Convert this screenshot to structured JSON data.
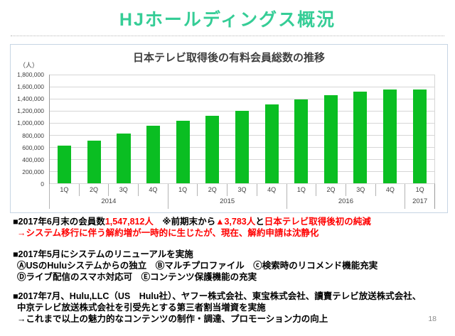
{
  "slide": {
    "title": "HJホールディングス概況",
    "page_number": "18"
  },
  "colors": {
    "title_green": "#35cd96",
    "bar_green": "#0abe22",
    "alert_red": "#ff0000",
    "chart_text_gray": "#3f3f3f",
    "page_number_gray": "#8c8c8c",
    "chart_border": "#c6d5e4"
  },
  "chart_data": {
    "type": "bar",
    "title": "日本テレビ取得後の有料会員総数の推移",
    "unit_label": "（人）",
    "categories": [
      "1Q",
      "2Q",
      "3Q",
      "4Q",
      "1Q",
      "2Q",
      "3Q",
      "4Q",
      "1Q",
      "2Q",
      "3Q",
      "4Q",
      "1Q"
    ],
    "year_groups": [
      {
        "label": "2014",
        "span": 4
      },
      {
        "label": "2015",
        "span": 4
      },
      {
        "label": "2016",
        "span": 4
      },
      {
        "label": "2017",
        "span": 1
      }
    ],
    "values": [
      620000,
      710000,
      820000,
      950000,
      1040000,
      1120000,
      1200000,
      1310000,
      1390000,
      1455000,
      1515000,
      1551595,
      1547812
    ],
    "ylim": [
      0,
      1800000
    ],
    "ytick_step": 200000,
    "grid": true,
    "legend": false,
    "bar_color": "#0abe22"
  },
  "bullets": {
    "s1": {
      "seg1": "■2017年6月末の会員数",
      "seg2": "1,547,812人",
      "seg3": "　※前期末から",
      "seg4": "▲3,783人",
      "seg5": "と",
      "seg6": "日本テレビ取得後初の純減",
      "line2": "→システム移行に伴う解約増が一時的に生じたが、現在、解約申請は沈静化"
    },
    "s2": {
      "header": "■2017年5月にシステムのリニューアルを実施",
      "items1": "ⒶUSのHuluシステムからの独立　Ⓑマルチプロファイル　ⓒ検索時のリコメンド機能充実",
      "items2": "Ⓓライブ配信のスマホ対応可　Ⓔコンテンツ保護機能の充実"
    },
    "s3": {
      "line1": "■2017年7月、Hulu,LLC（US　Hulu社）、ヤフー株式会社、東宝株式会社、讀賣テレビ放送株式会社、",
      "line2": "中京テレビ放送株式会社を引受先とする第三者割当増資を実施",
      "line3": "→これまで以上の魅力的なコンテンツの制作・調達、プロモーション力の向上"
    }
  }
}
